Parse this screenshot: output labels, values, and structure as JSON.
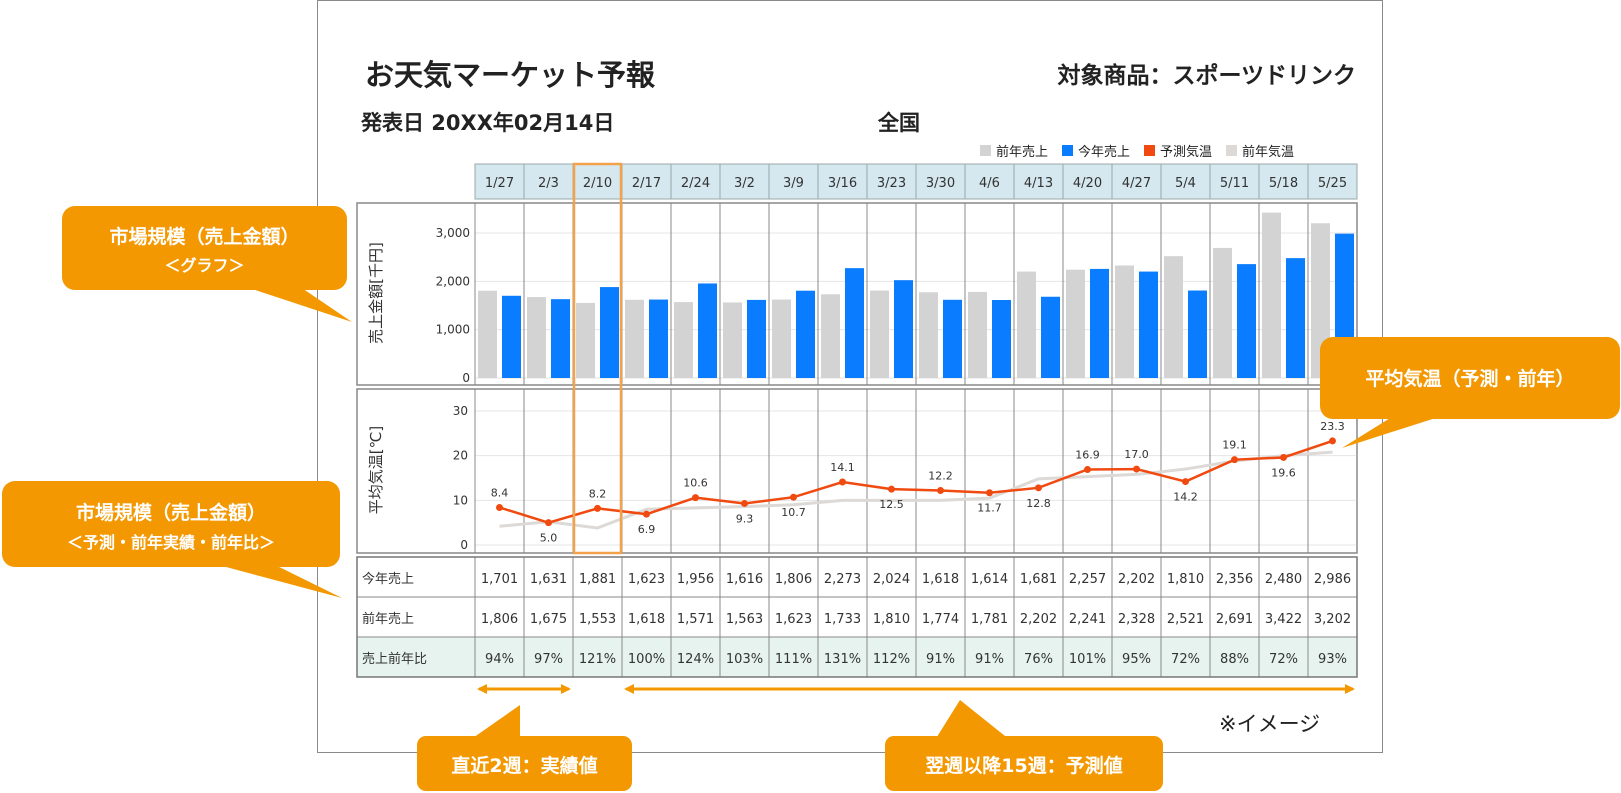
{
  "header": {
    "title": "お天気マーケット予報",
    "target": "対象商品：スポーツドリンク",
    "date": "発表日 20XX年02月14日",
    "region": "全国"
  },
  "legend": [
    {
      "label": "前年売上",
      "color": "#d3d3d3"
    },
    {
      "label": "今年売上",
      "color": "#0a7cff"
    },
    {
      "label": "予測気温",
      "color": "#f04a10"
    },
    {
      "label": "前年気温",
      "color": "#dcd9d6"
    }
  ],
  "callouts": {
    "market_graph_line1": "市場規模（売上金額）",
    "market_graph_line2": "＜グラフ＞",
    "market_table_line1": "市場規模（売上金額）",
    "market_table_line2": "＜予測・前年実績・前年比＞",
    "temperature": "平均気温（予測・前年）",
    "actual": "直近2週：実績値",
    "forecast": "翌週以降15週：予測値"
  },
  "note": "※イメージ",
  "colors": {
    "this_year": "#0a7cff",
    "last_year": "#d3d3d3",
    "forecast_temp": "#f04a10",
    "last_year_temp": "#dcd9d6",
    "accent": "#f39800",
    "header_bg": "#d5e7ef",
    "ratio_bg": "#e6f3ef"
  },
  "chart_data": [
    {
      "type": "bar",
      "categories": [
        "1/27",
        "2/3",
        "2/10",
        "2/17",
        "2/24",
        "3/2",
        "3/9",
        "3/16",
        "3/23",
        "3/30",
        "4/6",
        "4/13",
        "4/20",
        "4/27",
        "5/4",
        "5/11",
        "5/18",
        "5/25"
      ],
      "ylabel": "売上金額[千円]",
      "ylim": [
        0,
        3500
      ],
      "yticks": [
        0,
        1000,
        2000,
        3000
      ],
      "ytick_labels": [
        "0",
        "1,000",
        "2,000",
        "3,000"
      ],
      "highlight_category": "2/10",
      "series": [
        {
          "name": "前年売上",
          "values": [
            1806,
            1675,
            1553,
            1618,
            1571,
            1563,
            1623,
            1733,
            1810,
            1774,
            1781,
            2202,
            2241,
            2328,
            2521,
            2691,
            3422,
            3202
          ]
        },
        {
          "name": "今年売上",
          "values": [
            1701,
            1631,
            1881,
            1623,
            1956,
            1616,
            1806,
            2273,
            2024,
            1618,
            1614,
            1681,
            2257,
            2202,
            1810,
            2356,
            2480,
            2986
          ]
        }
      ]
    },
    {
      "type": "line",
      "categories": [
        "1/27",
        "2/3",
        "2/10",
        "2/17",
        "2/24",
        "3/2",
        "3/9",
        "3/16",
        "3/23",
        "3/30",
        "4/6",
        "4/13",
        "4/20",
        "4/27",
        "5/4",
        "5/11",
        "5/18",
        "5/25"
      ],
      "ylabel": "平均気温[℃]",
      "ylim": [
        0,
        30
      ],
      "yticks": [
        0,
        10,
        20,
        30
      ],
      "series": [
        {
          "name": "予測気温",
          "values": [
            8.4,
            5.0,
            8.2,
            6.9,
            10.6,
            9.3,
            10.7,
            14.1,
            12.5,
            12.2,
            11.7,
            12.8,
            16.9,
            17.0,
            14.2,
            19.1,
            19.6,
            23.3
          ]
        },
        {
          "name": "前年気温",
          "values": [
            4.2,
            5.2,
            3.8,
            8.0,
            8.3,
            8.6,
            9.0,
            10.0,
            10.0,
            10.0,
            10.5,
            14.8,
            15.3,
            15.8,
            17.0,
            18.8,
            20.0,
            20.8
          ]
        }
      ]
    },
    {
      "type": "table",
      "columns": [
        "1/27",
        "2/3",
        "2/10",
        "2/17",
        "2/24",
        "3/2",
        "3/9",
        "3/16",
        "3/23",
        "3/30",
        "4/6",
        "4/13",
        "4/20",
        "4/27",
        "5/4",
        "5/11",
        "5/18",
        "5/25"
      ],
      "rows": [
        {
          "label": "今年売上",
          "cells": [
            "1,701",
            "1,631",
            "1,881",
            "1,623",
            "1,956",
            "1,616",
            "1,806",
            "2,273",
            "2,024",
            "1,618",
            "1,614",
            "1,681",
            "2,257",
            "2,202",
            "1,810",
            "2,356",
            "2,480",
            "2,986"
          ]
        },
        {
          "label": "前年売上",
          "cells": [
            "1,806",
            "1,675",
            "1,553",
            "1,618",
            "1,571",
            "1,563",
            "1,623",
            "1,733",
            "1,810",
            "1,774",
            "1,781",
            "2,202",
            "2,241",
            "2,328",
            "2,521",
            "2,691",
            "3,422",
            "3,202"
          ]
        },
        {
          "label": "売上前年比",
          "cells": [
            "94%",
            "97%",
            "121%",
            "100%",
            "124%",
            "103%",
            "111%",
            "131%",
            "112%",
            "91%",
            "91%",
            "76%",
            "101%",
            "95%",
            "72%",
            "88%",
            "72%",
            "93%"
          ]
        }
      ]
    }
  ]
}
